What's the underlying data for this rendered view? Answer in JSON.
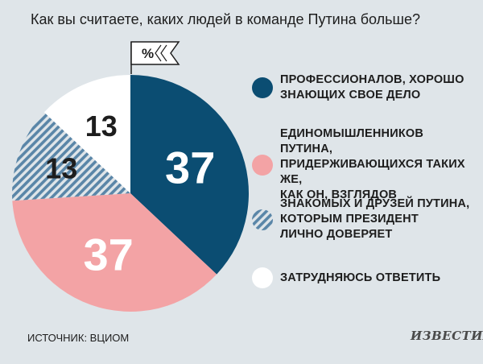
{
  "title": "Как вы считаете, каких людей в команде Путина больше?",
  "unit_label": "%",
  "source": "ИСТОЧНИК: ВЦИОМ",
  "logo": "ИЗВЕСТИЯ",
  "chart_data": {
    "type": "pie",
    "unit": "%",
    "slices": [
      {
        "label": "ПРОФЕССИОНАЛОВ, ХОРОШО ЗНАЮЩИХ СВОЕ ДЕЛО",
        "value": 37,
        "color": "#0b4d72",
        "pattern": "solid",
        "value_color": "#ffffff"
      },
      {
        "label": "ЕДИНОМЫШЛЕННИКОВ ПУТИНА, ПРИДЕРЖИВАЮЩИХСЯ ТАКИХ ЖЕ, КАК ОН, ВЗГЛЯДОВ",
        "value": 37,
        "color": "#f3a3a5",
        "pattern": "solid",
        "value_color": "#ffffff"
      },
      {
        "label": "ЗНАКОМЫХ И ДРУЗЕЙ ПУТИНА, КОТОРЫМ ПРЕЗИДЕНТ ЛИЧНО ДОВЕРЯЕТ",
        "value": 13,
        "color": "#5a86a8",
        "pattern": "hatch",
        "value_color": "#1d1d1d"
      },
      {
        "label": "ЗАТРУДНЯЮСЬ ОТВЕТИТЬ",
        "value": 13,
        "color": "#ffffff",
        "pattern": "solid",
        "value_color": "#1d1d1d"
      }
    ],
    "legend_labels": [
      [
        "ПРОФЕССИОНАЛОВ, ХОРОШО",
        "ЗНАЮЩИХ СВОЕ ДЕЛО"
      ],
      [
        "ЕДИНОМЫШЛЕННИКОВ ПУТИНА,",
        "ПРИДЕРЖИВАЮЩИХСЯ ТАКИХ ЖЕ,",
        "КАК ОН, ВЗГЛЯДОВ"
      ],
      [
        "ЗНАКОМЫХ И ДРУЗЕЙ ПУТИНА,",
        "КОТОРЫМ ПРЕЗИДЕНТ",
        "ЛИЧНО ДОВЕРЯЕТ"
      ],
      [
        "ЗАТРУДНЯЮСЬ ОТВЕТИТЬ"
      ]
    ],
    "legend_position": "right"
  }
}
